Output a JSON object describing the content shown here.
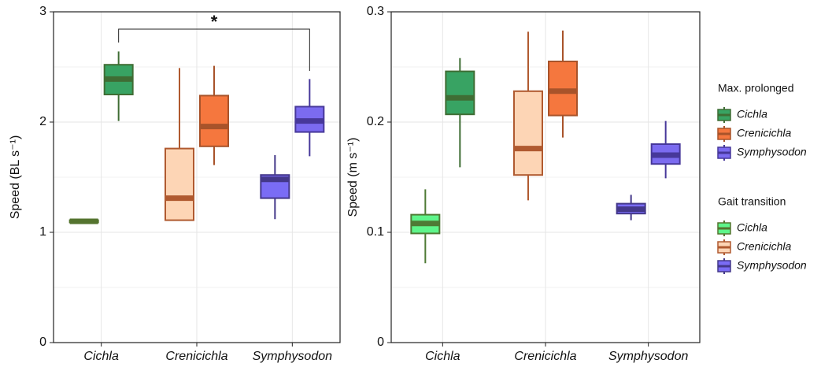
{
  "chart_data": [
    {
      "type": "box",
      "ylabel": "Speed (BL s⁻¹)",
      "annotation": "*",
      "categories": [
        "Cichla",
        "Crenicichla",
        "Symphysodon"
      ],
      "ylim": [
        0,
        3
      ],
      "yticks": [
        0,
        1,
        2,
        3
      ],
      "grid": true,
      "series": [
        {
          "name": "Max. prolonged",
          "fill_colors": [
            "#38a363",
            "#f5773e",
            "#7b6bf0"
          ],
          "line_colors": [
            "#3f6d34",
            "#a8532a",
            "#47389a"
          ],
          "stats": [
            {
              "min": 2.01,
              "q1": 2.25,
              "median": 2.39,
              "q3": 2.52,
              "max": 2.64
            },
            {
              "min": 1.61,
              "q1": 1.78,
              "median": 1.96,
              "q3": 2.24,
              "max": 2.51
            },
            {
              "min": 1.69,
              "q1": 1.91,
              "median": 2.01,
              "q3": 2.14,
              "max": 2.39
            }
          ]
        },
        {
          "name": "Gait transition",
          "fill_colors": [
            "#5ef58a",
            "#fdd5b5",
            "#7a6cf5"
          ],
          "line_colors": [
            "#55742f",
            "#b05a30",
            "#44388a"
          ],
          "stats": [
            {
              "min": 1.09,
              "q1": 1.09,
              "median": 1.1,
              "q3": 1.11,
              "max": 1.11
            },
            {
              "min": 1.11,
              "q1": 1.11,
              "median": 1.31,
              "q3": 1.76,
              "max": 2.49
            },
            {
              "min": 1.12,
              "q1": 1.31,
              "median": 1.48,
              "q3": 1.52,
              "max": 1.7
            }
          ]
        }
      ]
    },
    {
      "type": "box",
      "ylabel": "Speed (m s⁻¹)",
      "categories": [
        "Cichla",
        "Crenicichla",
        "Symphysodon"
      ],
      "ylim": [
        0,
        0.3
      ],
      "yticks": [
        0,
        0.1,
        0.2,
        0.3
      ],
      "grid": true,
      "series": [
        {
          "name": "Max. prolonged",
          "fill_colors": [
            "#38a363",
            "#f5773e",
            "#7b6bf0"
          ],
          "line_colors": [
            "#3f6d34",
            "#a8532a",
            "#47389a"
          ],
          "stats": [
            {
              "min": 0.159,
              "q1": 0.207,
              "median": 0.222,
              "q3": 0.246,
              "max": 0.258
            },
            {
              "min": 0.186,
              "q1": 0.206,
              "median": 0.228,
              "q3": 0.255,
              "max": 0.283
            },
            {
              "min": 0.149,
              "q1": 0.162,
              "median": 0.17,
              "q3": 0.18,
              "max": 0.201
            }
          ]
        },
        {
          "name": "Gait transition",
          "fill_colors": [
            "#5ef58a",
            "#fdd5b5",
            "#7a6cf5"
          ],
          "line_colors": [
            "#4f7a35",
            "#b05a30",
            "#44388a"
          ],
          "stats": [
            {
              "min": 0.072,
              "q1": 0.099,
              "median": 0.108,
              "q3": 0.116,
              "max": 0.139
            },
            {
              "min": 0.129,
              "q1": 0.152,
              "median": 0.176,
              "q3": 0.228,
              "max": 0.282
            },
            {
              "min": 0.111,
              "q1": 0.117,
              "median": 0.121,
              "q3": 0.126,
              "max": 0.134
            }
          ]
        }
      ]
    }
  ]
}
